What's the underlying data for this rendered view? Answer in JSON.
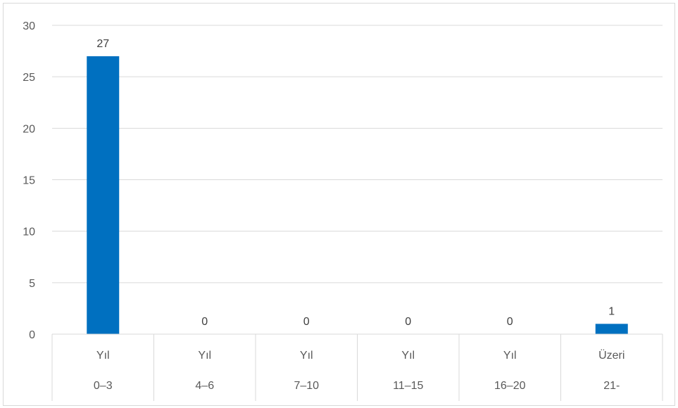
{
  "chart_data": {
    "type": "bar",
    "categories": [
      [
        "Yıl",
        "0–3"
      ],
      [
        "Yıl",
        "4–6"
      ],
      [
        "Yıl",
        "7–10"
      ],
      [
        "Yıl",
        "11–15"
      ],
      [
        "Yıl",
        "16–20"
      ],
      [
        "Üzeri",
        "21-"
      ]
    ],
    "values": [
      27,
      0,
      0,
      0,
      0,
      1
    ],
    "data_labels": [
      "27",
      "0",
      "0",
      "0",
      "0",
      "1"
    ],
    "y_ticks": [
      "0",
      "5",
      "10",
      "15",
      "20",
      "25",
      "30"
    ],
    "ylim": [
      0,
      30
    ],
    "grid": true,
    "bar_color": "#0070C0",
    "title": "",
    "xlabel": "",
    "ylabel": ""
  }
}
